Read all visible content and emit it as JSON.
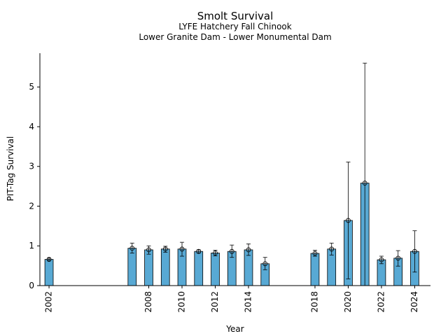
{
  "chart_data": {
    "type": "bar",
    "title": "Smolt Survival",
    "subtitle": "LYFE Hatchery Fall Chinook",
    "subtitle2": "Lower Granite Dam - Lower Monumental Dam",
    "xlabel": "Year",
    "ylabel": "PIT-Tag Survival",
    "ylim": [
      0,
      5.85
    ],
    "yticks": [
      0,
      1,
      2,
      3,
      4,
      5
    ],
    "xlim": [
      2001.45,
      2024.95
    ],
    "xticks": [
      2002,
      2008,
      2010,
      2012,
      2014,
      2018,
      2020,
      2022,
      2024
    ],
    "grid": false,
    "data": [
      {
        "year": 2002,
        "value": 0.66,
        "low": 0.63,
        "high": 0.69
      },
      {
        "year": 2007,
        "value": 0.94,
        "low": 0.82,
        "high": 1.07
      },
      {
        "year": 2008,
        "value": 0.9,
        "low": 0.79,
        "high": 1.0
      },
      {
        "year": 2009,
        "value": 0.92,
        "low": 0.84,
        "high": 0.99
      },
      {
        "year": 2010,
        "value": 0.92,
        "low": 0.74,
        "high": 1.09
      },
      {
        "year": 2011,
        "value": 0.86,
        "low": 0.82,
        "high": 0.9
      },
      {
        "year": 2012,
        "value": 0.82,
        "low": 0.75,
        "high": 0.89
      },
      {
        "year": 2013,
        "value": 0.86,
        "low": 0.71,
        "high": 1.02
      },
      {
        "year": 2014,
        "value": 0.9,
        "low": 0.76,
        "high": 1.05
      },
      {
        "year": 2015,
        "value": 0.55,
        "low": 0.4,
        "high": 0.71
      },
      {
        "year": 2018,
        "value": 0.81,
        "low": 0.74,
        "high": 0.89
      },
      {
        "year": 2019,
        "value": 0.92,
        "low": 0.77,
        "high": 1.07
      },
      {
        "year": 2020,
        "value": 1.64,
        "low": 0.17,
        "high": 3.11
      },
      {
        "year": 2021,
        "value": 2.58,
        "low": 0,
        "high": 5.6
      },
      {
        "year": 2022,
        "value": 0.65,
        "low": 0.55,
        "high": 0.74
      },
      {
        "year": 2023,
        "value": 0.69,
        "low": 0.49,
        "high": 0.88
      },
      {
        "year": 2024,
        "value": 0.86,
        "low": 0.34,
        "high": 1.38
      }
    ]
  }
}
